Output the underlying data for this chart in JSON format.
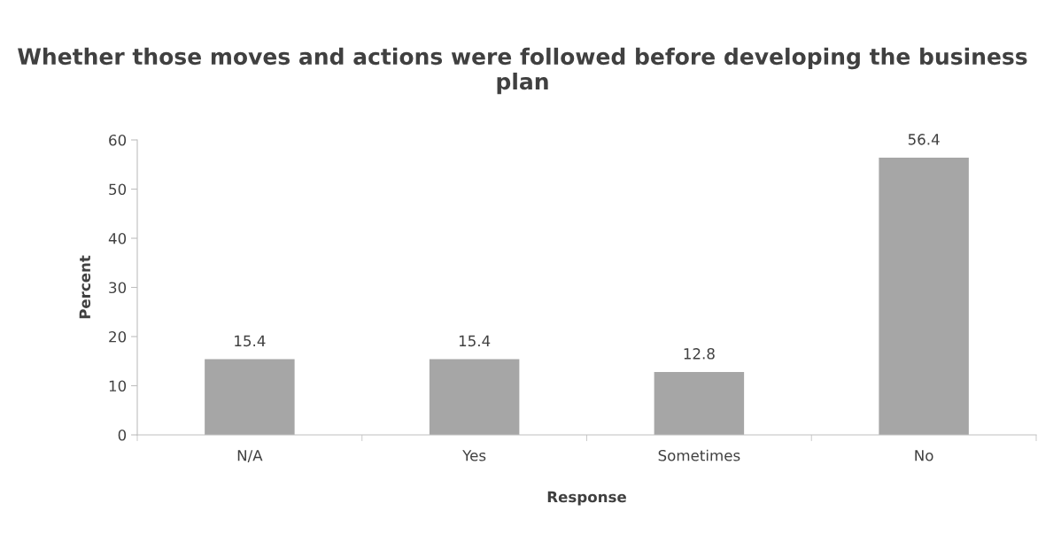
{
  "chart_data": {
    "type": "bar",
    "title": "Whether those moves and actions were followed before developing the business plan",
    "xlabel": "Response",
    "ylabel": "Percent",
    "categories": [
      "N/A",
      "Yes",
      "Sometimes",
      "No"
    ],
    "values": [
      15.4,
      15.4,
      12.8,
      56.4
    ],
    "color": "#a6a6a6",
    "ylim": [
      0,
      60
    ],
    "yticks": [
      0,
      10,
      20,
      30,
      40,
      50,
      60
    ],
    "data_labels": true,
    "grid": false,
    "legend": false
  }
}
